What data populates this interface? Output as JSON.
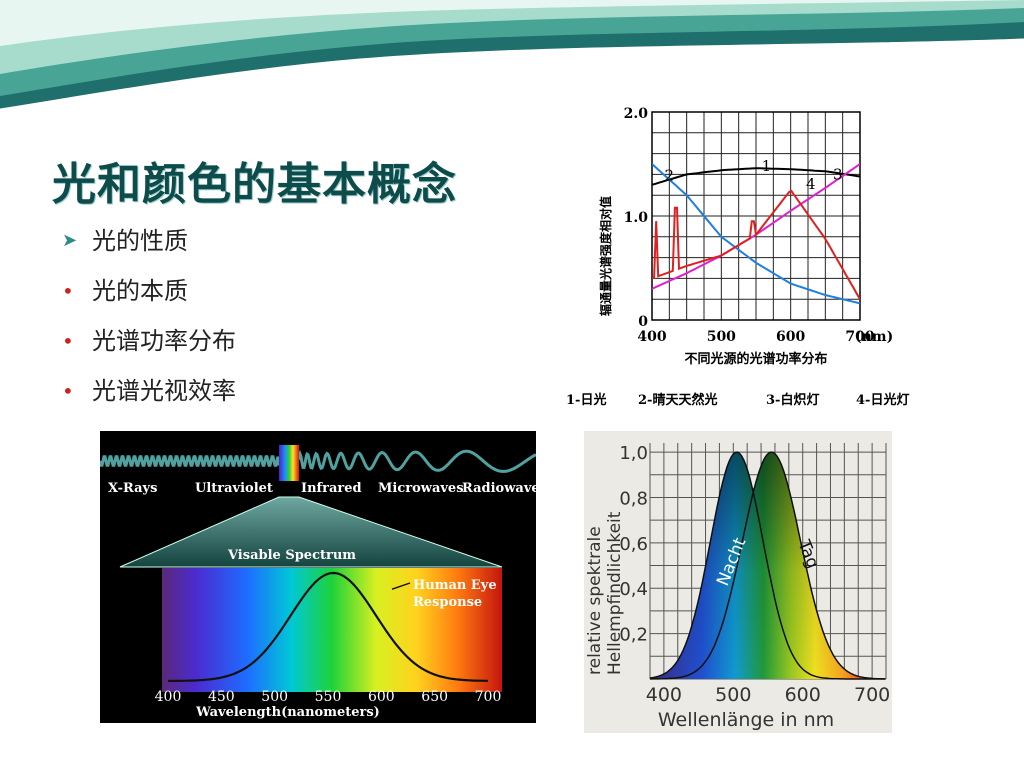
{
  "slide": {
    "title": "光和颜色的基本概念",
    "bullets": [
      {
        "marker": "arrow",
        "text": "光的性质"
      },
      {
        "marker": "dot",
        "text": "光的本质"
      },
      {
        "marker": "dot",
        "text": "光谱功率分布"
      },
      {
        "marker": "dot",
        "text": "光谱光视效率"
      }
    ]
  },
  "colors": {
    "title": "#0d4c4a",
    "wave_dark": "#1f6f6c",
    "wave_light": "#7ec9b8",
    "arrow_bullet": "#2e8b8b",
    "dot_bullet": "#cc2222"
  },
  "figure_spd": {
    "ylabel": "辐通量光谱强度相对值",
    "xlabel": "不同光源的光谱功率分布",
    "x_ticks": [
      "400",
      "500",
      "600",
      "700"
    ],
    "x_unit": "(nm)",
    "y_ticks": [
      "0",
      "1.0",
      "2.0"
    ],
    "curve_numbers": [
      "1",
      "2",
      "3",
      "4"
    ],
    "legend": [
      {
        "text": "1-日光",
        "color": "#000000"
      },
      {
        "text": "2-晴天天然光",
        "color": "#1e7fe0"
      },
      {
        "text": "3-白炽灯",
        "color": "#e020d0"
      },
      {
        "text": "4-日光灯",
        "color": "#e02020"
      }
    ]
  },
  "figure_em": {
    "bands": [
      "X-Rays",
      "Ultraviolet",
      "Infrared",
      "Microwaves",
      "Radiowaves"
    ],
    "visible_label": "Visable Spectrum",
    "eye_label": [
      "Human Eye",
      "Response"
    ],
    "x_ticks": [
      "400",
      "450",
      "500",
      "550",
      "600",
      "650",
      "700"
    ],
    "xlabel": "Wavelength(nanometers)"
  },
  "figure_de": {
    "y_ticks": [
      "1,0",
      "0,8",
      "0,6",
      "0,4",
      "0,2"
    ],
    "x_ticks": [
      "400",
      "500",
      "600",
      "700"
    ],
    "ylabel": [
      "relative spektrale",
      "Hellempfindlichkeit"
    ],
    "xlabel": "Wellenlänge in nm",
    "curve_night": "Nacht",
    "curve_day": "Tag"
  },
  "chart_data": [
    {
      "type": "line",
      "title": "不同光源的光谱功率分布",
      "xlabel": "",
      "ylabel": "辐通量光谱强度相对值",
      "xlim": [
        400,
        700
      ],
      "ylim": [
        0,
        2.0
      ],
      "x": [
        400,
        450,
        500,
        550,
        600,
        650,
        700
      ],
      "series": [
        {
          "name": "1-日光",
          "values": [
            1.3,
            1.4,
            1.44,
            1.46,
            1.45,
            1.43,
            1.38
          ]
        },
        {
          "name": "2-晴天天然光",
          "values": [
            1.5,
            1.2,
            0.8,
            0.55,
            0.35,
            0.24,
            0.16
          ]
        },
        {
          "name": "3-白炽灯",
          "values": [
            0.3,
            0.45,
            0.62,
            0.82,
            1.05,
            1.27,
            1.5
          ]
        },
        {
          "name": "4-日光灯",
          "values": [
            0.4,
            0.52,
            0.62,
            0.82,
            1.25,
            0.78,
            0.2
          ]
        }
      ]
    },
    {
      "type": "line",
      "title": "",
      "xlabel": "Wavelength(nanometers)",
      "ylabel": "",
      "xlim": [
        400,
        700
      ],
      "ylim": [
        0,
        1.0
      ],
      "x": [
        400,
        450,
        500,
        550,
        600,
        650,
        700
      ],
      "series": [
        {
          "name": "Human Eye Response",
          "values": [
            0.01,
            0.04,
            0.32,
            0.99,
            0.63,
            0.11,
            0.004
          ]
        }
      ]
    },
    {
      "type": "area",
      "title": "",
      "xlabel": "Wellenlänge in nm",
      "ylabel": "relative spektrale Hellempfindlichkeit",
      "xlim": [
        380,
        720
      ],
      "ylim": [
        0,
        1.0
      ],
      "x": [
        400,
        450,
        500,
        550,
        600,
        650,
        700
      ],
      "series": [
        {
          "name": "Nacht",
          "values": [
            0.01,
            0.3,
            0.98,
            0.48,
            0.03,
            0.0,
            0.0
          ]
        },
        {
          "name": "Tag",
          "values": [
            0.0,
            0.04,
            0.32,
            0.99,
            0.63,
            0.11,
            0.0
          ]
        }
      ]
    }
  ]
}
